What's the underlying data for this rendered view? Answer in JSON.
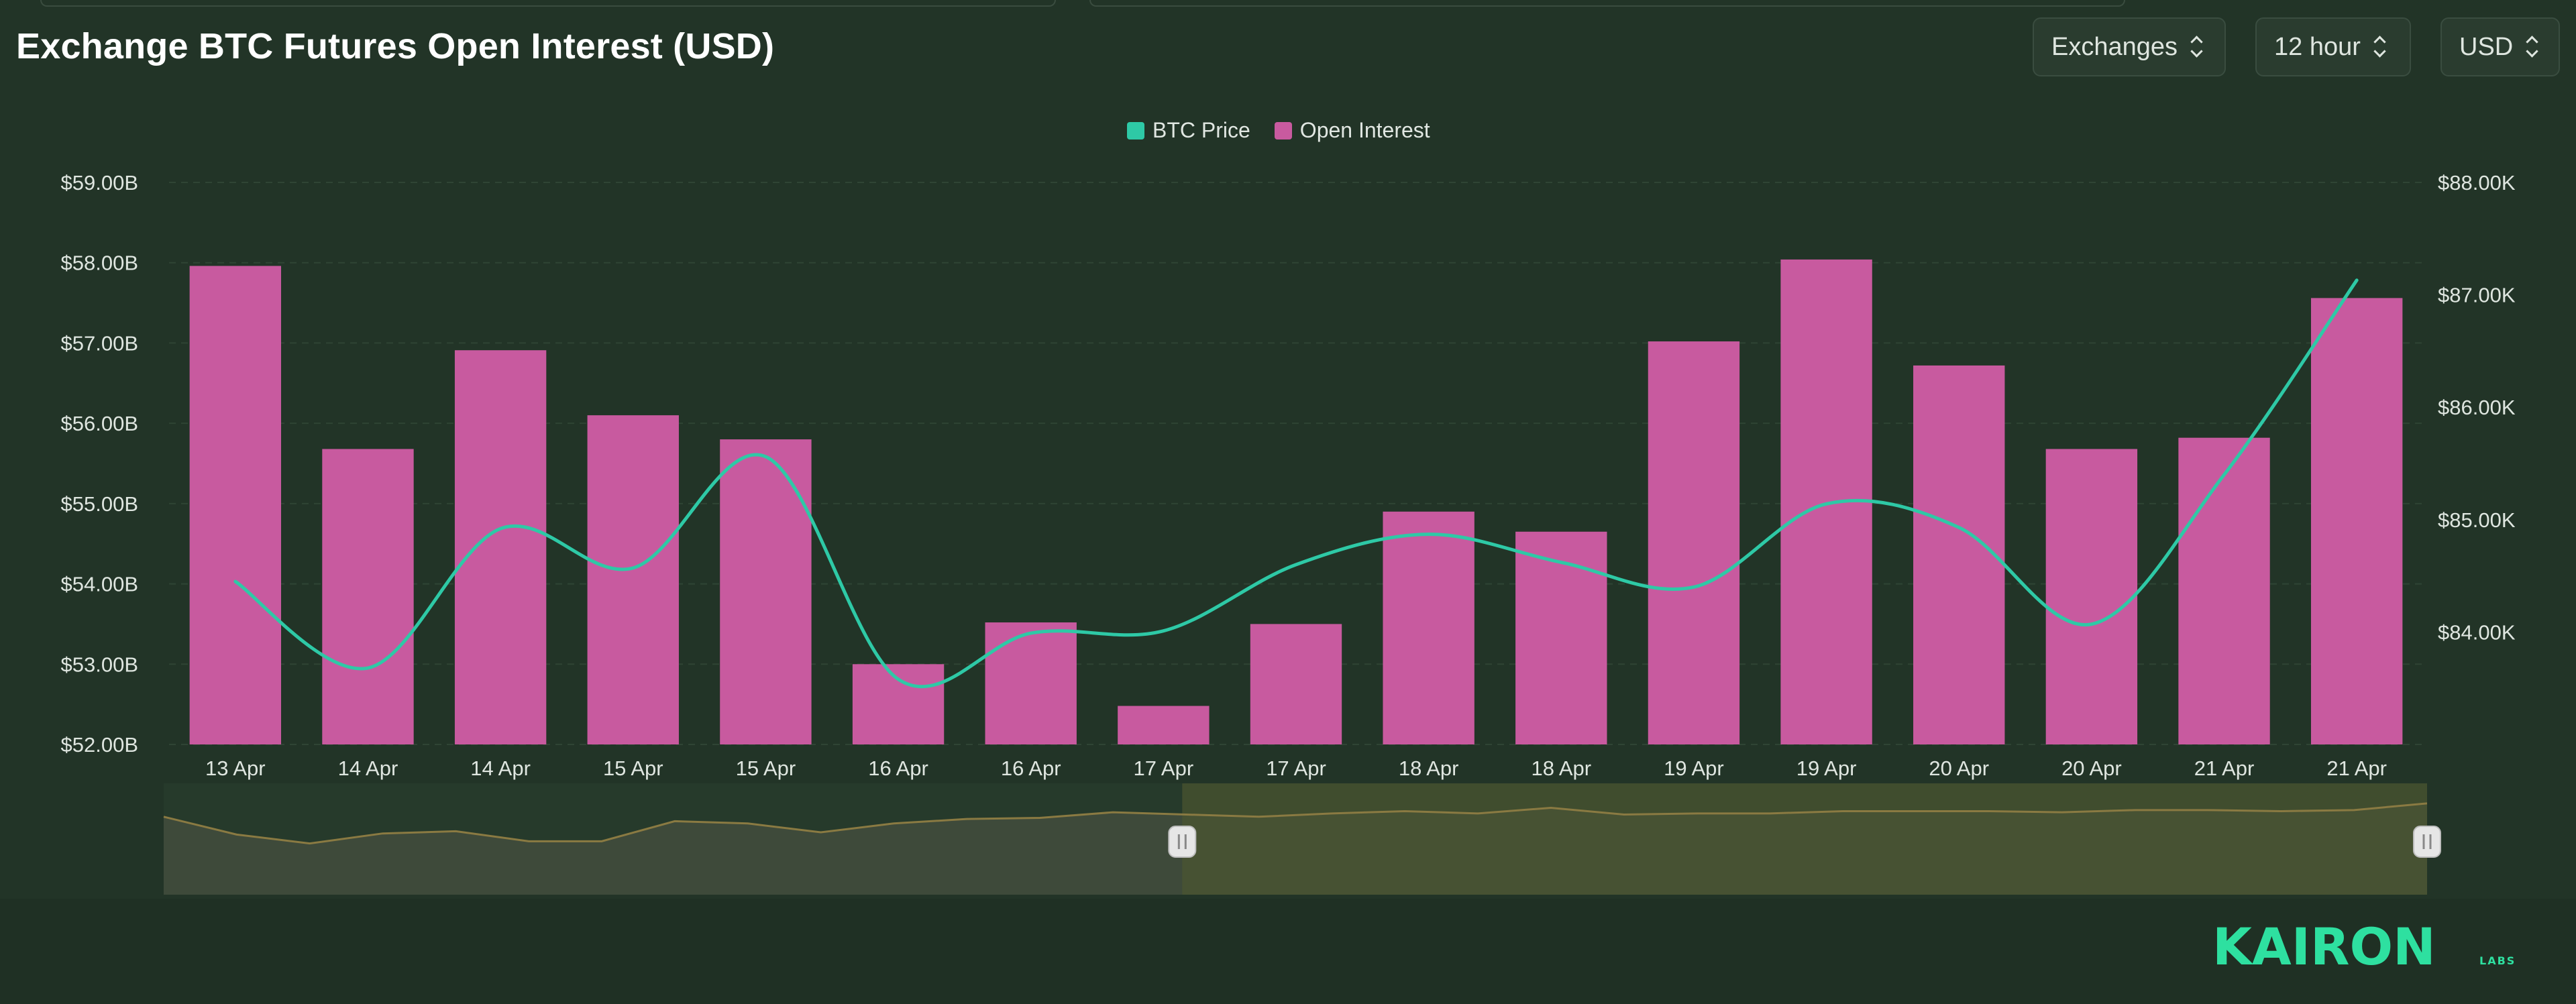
{
  "header": {
    "title": "Exchange BTC Futures Open Interest (USD)",
    "controls": [
      {
        "label": "Exchanges",
        "icon": "chevron-up-down-icon"
      },
      {
        "label": "12 hour",
        "icon": "chevron-up-down-icon"
      },
      {
        "label": "USD",
        "icon": "chevron-up-down-icon"
      }
    ]
  },
  "brand": {
    "name": "KAIRON",
    "sub": "LABS",
    "color": "#2ee0a0"
  },
  "chart_data": {
    "type": "bar",
    "categories": [
      "13 Apr",
      "14 Apr",
      "14 Apr",
      "15 Apr",
      "15 Apr",
      "16 Apr",
      "16 Apr",
      "17 Apr",
      "17 Apr",
      "18 Apr",
      "18 Apr",
      "19 Apr",
      "19 Apr",
      "20 Apr",
      "20 Apr",
      "21 Apr",
      "21 Apr"
    ],
    "series": [
      {
        "name": "Open Interest",
        "type": "bar",
        "axis": "left",
        "color": "#c85a9f",
        "values": [
          57.96,
          55.68,
          56.91,
          56.1,
          55.8,
          53.0,
          53.52,
          52.48,
          53.5,
          54.9,
          54.65,
          57.02,
          58.04,
          56.72,
          55.68,
          55.82,
          57.56
        ]
      },
      {
        "name": "BTC Price",
        "type": "line",
        "axis": "right",
        "color": "#2ec9a6",
        "values": [
          84450,
          83680,
          84920,
          84570,
          85560,
          83580,
          83990,
          84010,
          84600,
          84870,
          84620,
          84400,
          85140,
          84930,
          84070,
          85400,
          87130
        ]
      }
    ],
    "y_left": {
      "min": 52,
      "max": 59,
      "ticks": [
        "$52.00B",
        "$53.00B",
        "$54.00B",
        "$55.00B",
        "$56.00B",
        "$57.00B",
        "$58.00B",
        "$59.00B"
      ]
    },
    "y_right": {
      "min": 83000,
      "max": 88000,
      "ticks": [
        "$84.00K",
        "$85.00K",
        "$86.00K",
        "$87.00K",
        "$88.00K"
      ]
    },
    "legend": [
      {
        "name": "BTC Price",
        "color": "#2ec9a6"
      },
      {
        "name": "Open Interest",
        "color": "#c85a9f"
      }
    ],
    "legend_position": "top-center",
    "grid": true,
    "navigator": {
      "values": [
        70,
        54,
        46,
        55,
        57,
        48,
        48,
        66,
        64,
        56,
        64,
        68,
        69,
        74,
        72,
        70,
        73,
        75,
        73,
        78,
        72,
        73,
        73,
        75,
        75,
        75,
        74,
        76,
        76,
        75,
        76,
        82
      ],
      "selected_from_fraction": 0.45,
      "selected_to_fraction": 1.0
    }
  }
}
